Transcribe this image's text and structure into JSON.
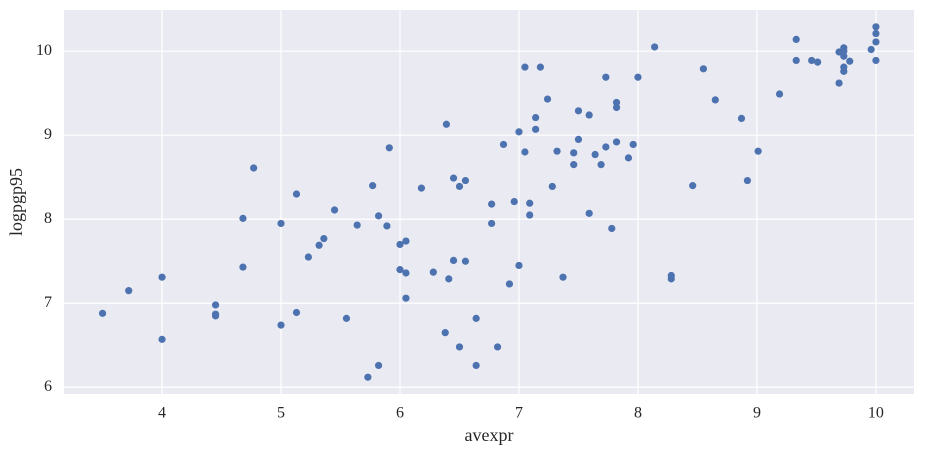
{
  "chart_data": {
    "type": "scatter",
    "xlabel": "avexpr",
    "ylabel": "logpgp95",
    "color": "#4c72b0",
    "grid": true,
    "xlim": [
      3.176,
      10.32
    ],
    "ylim": [
      5.92,
      10.49
    ],
    "xticks": [
      4,
      5,
      6,
      7,
      8,
      9,
      10
    ],
    "yticks": [
      6,
      7,
      8,
      9,
      10
    ],
    "x": [
      3.5,
      3.72,
      4.0,
      4.0,
      4.45,
      4.45,
      4.45,
      4.68,
      4.68,
      4.77,
      5.0,
      5.0,
      5.13,
      5.13,
      5.23,
      5.32,
      5.36,
      5.45,
      5.55,
      5.64,
      5.73,
      5.77,
      5.82,
      5.82,
      5.89,
      5.91,
      6.0,
      6.0,
      6.05,
      6.05,
      6.05,
      6.18,
      6.28,
      6.38,
      6.39,
      6.41,
      6.45,
      6.45,
      6.5,
      6.5,
      6.55,
      6.55,
      6.64,
      6.64,
      6.77,
      6.77,
      6.82,
      6.87,
      6.92,
      6.96,
      7.0,
      7.0,
      7.05,
      7.05,
      7.09,
      7.09,
      7.14,
      7.14,
      7.18,
      7.24,
      7.28,
      7.32,
      7.37,
      7.46,
      7.46,
      7.5,
      7.5,
      7.59,
      7.59,
      7.64,
      7.69,
      7.73,
      7.73,
      7.78,
      7.82,
      7.82,
      7.82,
      7.92,
      7.96,
      8.0,
      8.14,
      8.28,
      8.28,
      8.46,
      8.55,
      8.65,
      8.87,
      8.92,
      9.01,
      9.19,
      9.33,
      9.33,
      9.46,
      9.51,
      9.69,
      9.69,
      9.73,
      9.73,
      9.73,
      9.73,
      9.73,
      9.78,
      9.96,
      10.0,
      10.0,
      10.0,
      10.0
    ],
    "values": [
      6.88,
      7.15,
      7.31,
      6.57,
      6.98,
      6.87,
      6.85,
      8.01,
      7.43,
      8.61,
      7.95,
      6.74,
      8.3,
      6.89,
      7.55,
      7.69,
      7.77,
      8.11,
      6.82,
      7.93,
      6.12,
      8.4,
      8.04,
      6.26,
      7.92,
      8.85,
      7.7,
      7.4,
      7.74,
      7.36,
      7.06,
      8.37,
      7.37,
      6.65,
      9.13,
      7.29,
      8.49,
      7.51,
      8.39,
      6.48,
      8.46,
      7.5,
      6.82,
      6.26,
      8.18,
      7.95,
      6.48,
      8.89,
      7.23,
      8.21,
      9.04,
      7.45,
      9.81,
      8.8,
      8.19,
      8.05,
      9.21,
      9.07,
      9.81,
      9.43,
      8.39,
      8.81,
      7.31,
      8.79,
      8.65,
      9.29,
      8.95,
      9.24,
      8.07,
      8.77,
      8.65,
      9.69,
      8.86,
      7.89,
      9.39,
      9.33,
      8.92,
      8.73,
      8.89,
      9.69,
      10.05,
      7.33,
      7.29,
      8.4,
      9.79,
      9.42,
      9.2,
      8.46,
      8.81,
      9.49,
      10.14,
      9.89,
      9.89,
      9.87,
      9.99,
      9.62,
      10.04,
      10.0,
      9.94,
      9.81,
      9.76,
      9.88,
      10.02,
      10.29,
      10.21,
      10.11,
      9.89
    ]
  }
}
